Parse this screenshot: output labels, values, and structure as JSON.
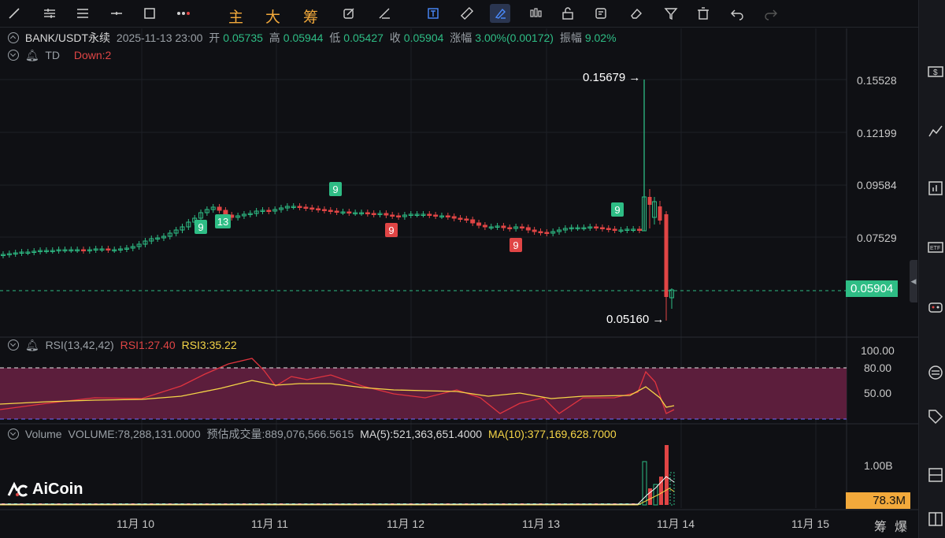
{
  "toolbar": {
    "chars": [
      "主",
      "大",
      "筹"
    ]
  },
  "legend": {
    "symbol": "BANK/USDT永续",
    "datetime": "2025-11-13 23:00",
    "open_label": "开",
    "open": "0.05735",
    "high_label": "高",
    "high": "0.05944",
    "low_label": "低",
    "low": "0.05427",
    "close_label": "收",
    "close": "0.05904",
    "change_label": "涨幅",
    "change": "3.00%(0.00172)",
    "amp_label": "振幅",
    "amp": "9.02%",
    "td_label": "TD",
    "td_value": "Down:2"
  },
  "rsi": {
    "label": "RSI(13,42,42)",
    "rsi1": "RSI1:27.40",
    "rsi3": "RSI3:35.22",
    "levels": [
      "100.00",
      "80.00",
      "50.00"
    ]
  },
  "volume": {
    "label": "Volume",
    "value": "VOLUME:78,288,131.0000",
    "estimate": "预估成交量:889,076,566.5615",
    "ma5": "MA(5):521,363,651.4000",
    "ma10": "MA(10):377,169,628.7000",
    "axis": "1.00B",
    "current": "78.3M"
  },
  "price_axis": [
    "0.15528",
    "0.12199",
    "0.09584",
    "0.07529"
  ],
  "current_price": "0.05904",
  "high_annotation": "0.15679",
  "low_annotation": "0.05160",
  "time_axis": [
    "11月 10",
    "11月 11",
    "11月 12",
    "11月 13",
    "11月 14",
    "11月 15"
  ],
  "bottom_right": [
    "筹",
    "爆"
  ],
  "logo_text": "AiCoin",
  "td_markers": [
    {
      "label": "9",
      "type": "buy"
    },
    {
      "label": "13",
      "type": "buy"
    },
    {
      "label": "9",
      "type": "buy"
    },
    {
      "label": "9",
      "type": "sell"
    },
    {
      "label": "9",
      "type": "sell"
    },
    {
      "label": "9",
      "type": "buy"
    }
  ],
  "colors": {
    "up": "#2ebd85",
    "down": "#e04545",
    "rsi1": "#e0343f",
    "rsi3": "#f5d547",
    "accent": "#f2a93b"
  }
}
